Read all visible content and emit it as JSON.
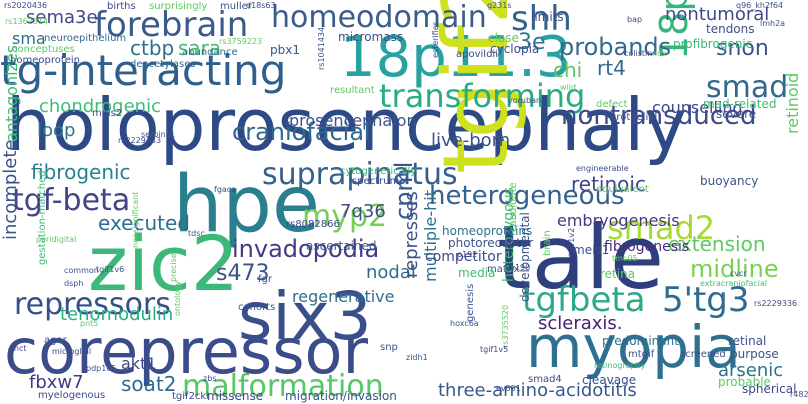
{
  "words": [
    {
      "text": "holoprosencephaly",
      "color": "#2d4a86",
      "orientation": "h"
    },
    {
      "text": "corepressor",
      "color": "#3b4c8a",
      "orientation": "h"
    },
    {
      "text": "six3",
      "color": "#3a4e89",
      "orientation": "h"
    },
    {
      "text": "tale",
      "color": "#2f3f7e",
      "orientation": "h"
    },
    {
      "text": "hpe",
      "color": "#2a7f8e",
      "orientation": "h"
    },
    {
      "text": "zic2",
      "color": "#3cb97a",
      "orientation": "h"
    },
    {
      "text": "18p11.3",
      "color": "#27a2a0",
      "orientation": "h"
    },
    {
      "text": "tgif2",
      "color": "#cde11e",
      "orientation": "v"
    },
    {
      "text": "myopia",
      "color": "#2f6f8f",
      "orientation": "h"
    },
    {
      "text": "tg-interacting",
      "color": "#2e5f8d",
      "orientation": "h"
    },
    {
      "text": "forebrain",
      "color": "#3a5a8c",
      "orientation": "h"
    },
    {
      "text": "homeodomain",
      "color": "#3c5d8c",
      "orientation": "h"
    },
    {
      "text": "transforming",
      "color": "#27ad81",
      "orientation": "h"
    },
    {
      "text": "repressors",
      "color": "#33508b",
      "orientation": "h"
    },
    {
      "text": "tgfbeta",
      "color": "#2ea88b",
      "orientation": "h"
    },
    {
      "text": "5'tg3",
      "color": "#2f6b8e",
      "orientation": "h"
    },
    {
      "text": "malformation",
      "color": "#56c667",
      "orientation": "h"
    },
    {
      "text": "smad2",
      "color": "#a6db35",
      "orientation": "h"
    },
    {
      "text": "tgf-beta",
      "color": "#414487",
      "orientation": "h"
    },
    {
      "text": "suprapinatus",
      "color": "#355f8d",
      "orientation": "h"
    },
    {
      "text": "craniofacial",
      "color": "#31688e",
      "orientation": "h"
    },
    {
      "text": "invadopodia",
      "color": "#443983",
      "orientation": "h"
    },
    {
      "text": "myp2",
      "color": "#73d056",
      "orientation": "h"
    },
    {
      "text": "heterogeneous",
      "color": "#33638d",
      "orientation": "h"
    },
    {
      "text": "smad",
      "color": "#31688e",
      "orientation": "h"
    },
    {
      "text": "18p",
      "color": "#34b679",
      "orientation": "v"
    },
    {
      "text": "shh",
      "color": "#33628d",
      "orientation": "h"
    },
    {
      "text": "nontransduced",
      "color": "#3e4989",
      "orientation": "h"
    },
    {
      "text": "probands",
      "color": "#31688e",
      "orientation": "h"
    },
    {
      "text": "snon",
      "color": "#39568c",
      "orientation": "h"
    },
    {
      "text": "sema3e",
      "color": "#404688",
      "orientation": "h"
    },
    {
      "text": "ctbp",
      "color": "#2c728e",
      "orientation": "h"
    },
    {
      "text": "sara",
      "color": "#3dbc74",
      "orientation": "h"
    },
    {
      "text": "3e",
      "color": "#2a768e",
      "orientation": "h"
    },
    {
      "text": "nontumoral",
      "color": "#3e4a89",
      "orientation": "h"
    },
    {
      "text": "sma",
      "color": "#2c718e",
      "orientation": "h"
    },
    {
      "text": "chi",
      "color": "#5ec962",
      "orientation": "h"
    },
    {
      "text": "rt4",
      "color": "#306a8e",
      "orientation": "h"
    },
    {
      "text": "chondrogenic",
      "color": "#40bd72",
      "orientation": "h"
    },
    {
      "text": "loop",
      "color": "#2a768e",
      "orientation": "h"
    },
    {
      "text": "live-born",
      "color": "#3b528b",
      "orientation": "h"
    },
    {
      "text": "fibrogenic",
      "color": "#26828e",
      "orientation": "h"
    },
    {
      "text": "extension",
      "color": "#5ec962",
      "orientation": "h"
    },
    {
      "text": "midline",
      "color": "#7ad151",
      "orientation": "h"
    },
    {
      "text": "retinoic",
      "color": "#3f4788",
      "orientation": "h"
    },
    {
      "text": "executed",
      "color": "#2e6e8e",
      "orientation": "h"
    },
    {
      "text": "embryogenesis",
      "color": "#453882",
      "orientation": "h"
    },
    {
      "text": "cpml",
      "color": "#38588c",
      "orientation": "v"
    },
    {
      "text": "7q36",
      "color": "#3e4c8a",
      "orientation": "h"
    },
    {
      "text": "s473",
      "color": "#3b528b",
      "orientation": "h"
    },
    {
      "text": "nodal",
      "color": "#2e6f8e",
      "orientation": "h"
    },
    {
      "text": "tenomodulin",
      "color": "#28ae80",
      "orientation": "h"
    },
    {
      "text": "scleraxis.",
      "color": "#482173",
      "orientation": "h"
    },
    {
      "text": "soat2",
      "color": "#2e6d8e",
      "orientation": "h"
    },
    {
      "text": "fbxw7",
      "color": "#443a83",
      "orientation": "h"
    },
    {
      "text": "akt1",
      "color": "#3e4989",
      "orientation": "h"
    },
    {
      "text": "three-amino-acidotitis",
      "color": "#38588c",
      "orientation": "h"
    },
    {
      "text": "arsenic",
      "color": "#2c728e",
      "orientation": "h"
    },
    {
      "text": "represses",
      "color": "#3b528b",
      "orientation": "v"
    },
    {
      "text": "multiple-hit",
      "color": "#2d708e",
      "orientation": "v"
    },
    {
      "text": "fibrogenesis",
      "color": "#472d7b",
      "orientation": "h"
    },
    {
      "text": "heterozygous",
      "color": "#3fbc73",
      "orientation": "v"
    },
    {
      "text": "counselling",
      "color": "#3e4a89",
      "orientation": "h"
    },
    {
      "text": "retinoid",
      "color": "#5ec962",
      "orientation": "v"
    },
    {
      "text": "incomplete",
      "color": "#3a548c",
      "orientation": "v"
    },
    {
      "text": "antagonizes",
      "color": "#3dbc74",
      "orientation": "v"
    },
    {
      "text": "regenerative",
      "color": "#2e6e8e",
      "orientation": "h"
    },
    {
      "text": "ascertained",
      "color": "#355f8d",
      "orientation": "h"
    },
    {
      "text": "prosencephalon",
      "color": "#3b528b",
      "orientation": "h"
    },
    {
      "text": "homeoproteins",
      "color": "#2c728e",
      "orientation": "h"
    },
    {
      "text": "photoreceptor",
      "color": "#3b528b",
      "orientation": "h"
    },
    {
      "text": "micromass",
      "color": "#3b528b",
      "orientation": "h"
    },
    {
      "text": "pbx1",
      "color": "#3b528b",
      "orientation": "h"
    },
    {
      "text": "deacetylases",
      "color": "#31688e",
      "orientation": "h"
    },
    {
      "text": "conceptuses",
      "color": "#5ec962",
      "orientation": "h"
    },
    {
      "text": "homeoprotein",
      "color": "#3e4989",
      "orientation": "h"
    },
    {
      "text": "neuroepithelium",
      "color": "#2e6d8e",
      "orientation": "h"
    },
    {
      "text": "abundance",
      "color": "#2e6e8e",
      "orientation": "h"
    },
    {
      "text": "cyclopia",
      "color": "#3e4a89",
      "orientation": "h"
    },
    {
      "text": "close",
      "color": "#5ec962",
      "orientation": "h"
    },
    {
      "text": "limits",
      "color": "#3e4a89",
      "orientation": "h"
    },
    {
      "text": "profibrogenic",
      "color": "#38b977",
      "orientation": "h"
    },
    {
      "text": "tendons",
      "color": "#3b528b",
      "orientation": "h"
    },
    {
      "text": "mad-related",
      "color": "#3fbc73",
      "orientation": "h"
    },
    {
      "text": "severe",
      "color": "#3b528b",
      "orientation": "h"
    },
    {
      "text": "urothelial",
      "color": "#3b528b",
      "orientation": "h"
    },
    {
      "text": "defect",
      "color": "#5ec962",
      "orientation": "h"
    },
    {
      "text": "resultant",
      "color": "#5ec962",
      "orientation": "h"
    },
    {
      "text": "buoyancy",
      "color": "#3b528b",
      "orientation": "h"
    },
    {
      "text": "spectrum",
      "color": "#3e4989",
      "orientation": "h"
    },
    {
      "text": "cytogenetically",
      "color": "#3fbc73",
      "orientation": "h"
    },
    {
      "text": "engineerable",
      "color": "#3e4989",
      "orientation": "h"
    },
    {
      "text": "equivalent",
      "color": "#5ec962",
      "orientation": "h"
    },
    {
      "text": "competitor",
      "color": "#3e4989",
      "orientation": "h"
    },
    {
      "text": "matrix",
      "color": "#3b528b",
      "orientation": "h"
    },
    {
      "text": "media",
      "color": "#3fbc73",
      "orientation": "h"
    },
    {
      "text": "retina",
      "color": "#5ec962",
      "orientation": "h"
    },
    {
      "text": "candidate",
      "color": "#5ec962",
      "orientation": "v"
    },
    {
      "text": "meis1",
      "color": "#3e4989",
      "orientation": "h"
    },
    {
      "text": "meis2",
      "color": "#3b528b",
      "orientation": "h"
    },
    {
      "text": "tmc05",
      "color": "#5ec962",
      "orientation": "h"
    },
    {
      "text": "retinal",
      "color": "#3b528b",
      "orientation": "h"
    },
    {
      "text": "purpose",
      "color": "#3b528b",
      "orientation": "h"
    },
    {
      "text": "predominant",
      "color": "#2e6e8e",
      "orientation": "h"
    },
    {
      "text": "mtgif",
      "color": "#3b528b",
      "orientation": "h"
    },
    {
      "text": "screened",
      "color": "#3b528b",
      "orientation": "h"
    },
    {
      "text": "probable",
      "color": "#5ec962",
      "orientation": "h"
    },
    {
      "text": "spherical",
      "color": "#3e4989",
      "orientation": "h"
    },
    {
      "text": "cleavage",
      "color": "#3b528b",
      "orientation": "h"
    },
    {
      "text": "smad4",
      "color": "#3e4989",
      "orientation": "h"
    },
    {
      "text": "retinography",
      "color": "#3fbc73",
      "orientation": "h"
    },
    {
      "text": "developmental",
      "color": "#3b528b",
      "orientation": "v"
    },
    {
      "text": "genesis",
      "color": "#3b528b",
      "orientation": "v"
    },
    {
      "text": "brain",
      "color": "#5ec962",
      "orientation": "v"
    },
    {
      "text": "extracraniofacial",
      "color": "#3fbc73",
      "orientation": "h"
    },
    {
      "text": "gestation-matched",
      "color": "#3fbc73",
      "orientation": "v"
    },
    {
      "text": "agar",
      "color": "#3b528b",
      "orientation": "h"
    },
    {
      "text": "microglial",
      "color": "#3e4989",
      "orientation": "h"
    },
    {
      "text": "myelogenous",
      "color": "#3e4989",
      "orientation": "h"
    },
    {
      "text": "missense",
      "color": "#3e4989",
      "orientation": "h"
    },
    {
      "text": "migration/invasion",
      "color": "#3b528b",
      "orientation": "h"
    },
    {
      "text": "snp",
      "color": "#3b528b",
      "orientation": "h"
    },
    {
      "text": "cohorts",
      "color": "#3b528b",
      "orientation": "h"
    },
    {
      "text": "fgr",
      "color": "#3b528b",
      "orientation": "h"
    },
    {
      "text": "tgif1v6",
      "color": "#3b528b",
      "orientation": "h"
    },
    {
      "text": "tgif2cki",
      "color": "#3e4989",
      "orientation": "h"
    },
    {
      "text": "zbs",
      "color": "#3b528b",
      "orientation": "h"
    },
    {
      "text": "common",
      "color": "#3b528b",
      "orientation": "h"
    },
    {
      "text": "dsph",
      "color": "#3b528b",
      "orientation": "h"
    },
    {
      "text": "ahct",
      "color": "#3e4989",
      "orientation": "h"
    },
    {
      "text": "births",
      "color": "#3e4989",
      "orientation": "h"
    },
    {
      "text": "surprisingly",
      "color": "#5ec962",
      "orientation": "h"
    },
    {
      "text": "muller",
      "color": "#3b528b",
      "orientation": "h"
    },
    {
      "text": "d18s63",
      "color": "#3e4989",
      "orientation": "h"
    },
    {
      "text": "rs2020436",
      "color": "#3e4989",
      "orientation": "h"
    },
    {
      "text": "rs3759223",
      "color": "#5ec962",
      "orientation": "h"
    },
    {
      "text": "rs8082866",
      "color": "#3e4989",
      "orientation": "h"
    },
    {
      "text": "rs2229333",
      "color": "#3e4989",
      "orientation": "h"
    },
    {
      "text": "rs2229336",
      "color": "#3e4989",
      "orientation": "h"
    },
    {
      "text": "rs3735520",
      "color": "#5ec962",
      "orientation": "v"
    },
    {
      "text": "yoruban",
      "color": "#3b528b",
      "orientation": "h"
    },
    {
      "text": "colistin",
      "color": "#3b528b",
      "orientation": "h"
    },
    {
      "text": "bap",
      "color": "#3e4989",
      "orientation": "h"
    },
    {
      "text": "nox",
      "color": "#5ec962",
      "orientation": "h"
    },
    {
      "text": "wild",
      "color": "#5ec962",
      "orientation": "h"
    },
    {
      "text": "apovildii",
      "color": "#3e4989",
      "orientation": "h"
    },
    {
      "text": "esterifies",
      "color": "#3e4989",
      "orientation": "v"
    },
    {
      "text": "precise",
      "color": "#5ec962",
      "orientation": "v"
    },
    {
      "text": "ontology",
      "color": "#5ec962",
      "orientation": "v"
    },
    {
      "text": "nonsignificant",
      "color": "#5ec962",
      "orientation": "v"
    },
    {
      "text": "serpinc1",
      "color": "#3b528b",
      "orientation": "h"
    },
    {
      "text": "tdsc",
      "color": "#3b528b",
      "orientation": "h"
    },
    {
      "text": "peridigital",
      "color": "#5ec962",
      "orientation": "h"
    },
    {
      "text": "p192",
      "color": "#3b528b",
      "orientation": "h"
    },
    {
      "text": "a190",
      "color": "#3b528b",
      "orientation": "h"
    },
    {
      "text": "cvcr",
      "color": "#3b528b",
      "orientation": "h"
    },
    {
      "text": "hoxc6a",
      "color": "#3b528b",
      "orientation": "h"
    },
    {
      "text": "zidh1",
      "color": "#3b528b",
      "orientation": "h"
    },
    {
      "text": "pnt5",
      "color": "#5ec962",
      "orientation": "h"
    },
    {
      "text": "ev551",
      "color": "#3b528b",
      "orientation": "h"
    },
    {
      "text": "tgif1v5",
      "color": "#3e4989",
      "orientation": "h"
    },
    {
      "text": "tgif1v2",
      "color": "#3e4989",
      "orientation": "v"
    },
    {
      "text": "pdp105",
      "color": "#3b528b",
      "orientation": "h"
    },
    {
      "text": "r482a",
      "color": "#3b528b",
      "orientation": "h"
    },
    {
      "text": "fgaca",
      "color": "#3e4989",
      "orientation": "h"
    },
    {
      "text": "g231s",
      "color": "#3b528b",
      "orientation": "h"
    },
    {
      "text": "q96_kh2f64",
      "color": "#3b528b",
      "orientation": "h"
    },
    {
      "text": "lmh2a",
      "color": "#3b528b",
      "orientation": "h"
    },
    {
      "text": "rs1041434",
      "color": "#3b528b",
      "orientation": "v"
    },
    {
      "text": "rs1362314",
      "color": "#5ec962",
      "orientation": "h"
    }
  ]
}
